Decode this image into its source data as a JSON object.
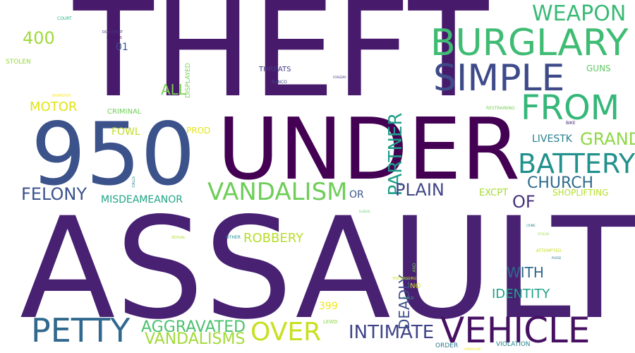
{
  "words": [
    {
      "text": "THEFT",
      "color": "#481a6c"
    },
    {
      "text": "ASSAULT",
      "color": "#482173"
    },
    {
      "text": "UNDER",
      "color": "#440154"
    },
    {
      "text": "950",
      "color": "#3b528b"
    },
    {
      "text": "BURGLARY",
      "color": "#3fbc73"
    },
    {
      "text": "SIMPLE",
      "color": "#3e4a89"
    },
    {
      "text": "VEHICLE",
      "color": "#471063"
    },
    {
      "text": "PETTY",
      "color": "#31688e"
    },
    {
      "text": "FROM",
      "color": "#35b779"
    },
    {
      "text": "BATTERY",
      "color": "#21918c"
    },
    {
      "text": "VANDALISM",
      "color": "#6ece58"
    },
    {
      "text": "OVER",
      "color": "#c8e020"
    },
    {
      "text": "WEAPON",
      "color": "#3aba76"
    },
    {
      "text": "PARTNER",
      "color": "#1f9e89"
    },
    {
      "text": "INTIMATE",
      "color": "#414487"
    },
    {
      "text": "AGGRAVATED",
      "color": "#4ac16d"
    },
    {
      "text": "VANDALISMS",
      "color": "#a2da37"
    },
    {
      "text": "DEADLY",
      "color": "#3e4c8a"
    },
    {
      "text": "FELONY",
      "color": "#3b528b"
    },
    {
      "text": "PLAIN",
      "color": "#404688"
    },
    {
      "text": "CHURCH",
      "color": "#2f6c8e"
    },
    {
      "text": "GRAND",
      "color": "#8fd744"
    },
    {
      "text": "ROBBERY",
      "color": "#b5de2b"
    },
    {
      "text": "WITH",
      "color": "#30698e"
    },
    {
      "text": "IDENTITY",
      "color": "#1fa088"
    },
    {
      "text": "OF",
      "color": "#46337e"
    },
    {
      "text": "ALL",
      "color": "#7ad151"
    },
    {
      "text": "400",
      "color": "#a0da39"
    },
    {
      "text": "MOTOR",
      "color": "#e0e318"
    },
    {
      "text": "MISDEAMEANOR",
      "color": "#20a486"
    },
    {
      "text": "LIVESTK",
      "color": "#277f8e"
    },
    {
      "text": "SHOPLIFTING",
      "color": "#b5de2b"
    },
    {
      "text": "EXCPT",
      "color": "#a5db36"
    },
    {
      "text": "OR",
      "color": "#39568c"
    },
    {
      "text": "01",
      "color": "#3b528b"
    },
    {
      "text": "399",
      "color": "#f1e51d"
    },
    {
      "text": "GUNS",
      "color": "#5ec962"
    },
    {
      "text": "CRIMINAL",
      "color": "#6ece58"
    },
    {
      "text": "FOWL",
      "color": "#c2df23"
    },
    {
      "text": "PROD",
      "color": "#e5e419"
    },
    {
      "text": "THREATS",
      "color": "#443a83"
    },
    {
      "text": "STOLEN",
      "color": "#95d840"
    },
    {
      "text": "DISPLAYED",
      "color": "#75d054"
    },
    {
      "text": "NO",
      "color": "#d8e219"
    },
    {
      "text": "ORDER",
      "color": "#2a788e"
    },
    {
      "text": "VIOLATION",
      "color": "#25858e"
    },
    {
      "text": "COURT",
      "color": "#2db27d"
    },
    {
      "text": "BUNCO",
      "color": "#404588"
    },
    {
      "text": "LEWD",
      "color": "#8bd646"
    },
    {
      "text": "RESTRAINING",
      "color": "#73d056"
    },
    {
      "text": "BIKE",
      "color": "#482475"
    },
    {
      "text": "BRANDISH",
      "color": "#fde725"
    },
    {
      "text": "DOCUMENT",
      "color": "#453581"
    },
    {
      "text": "LETTERS",
      "color": "#471365"
    },
    {
      "text": "FORGERY",
      "color": "#46307e"
    },
    {
      "text": "CALLS",
      "color": "#2a768e"
    },
    {
      "text": "ILLEGAL",
      "color": "#5ec962"
    },
    {
      "text": "SEXUAL",
      "color": "#addc30"
    },
    {
      "text": "OTHER",
      "color": "#228c8d"
    },
    {
      "text": "TRESPASSING",
      "color": "#d2e21b"
    },
    {
      "text": "AND",
      "color": "#7ad151"
    },
    {
      "text": "CHILD",
      "color": "#31b57b"
    },
    {
      "text": "ATTEMPTED",
      "color": "#c8e020"
    },
    {
      "text": "PURSE",
      "color": "#2c728e"
    },
    {
      "text": "CRIME",
      "color": "#26828e"
    },
    {
      "text": "VANDALISM",
      "color": "#f1e51d"
    },
    {
      "text": "STOLEN",
      "color": "#9bd93c"
    }
  ]
}
